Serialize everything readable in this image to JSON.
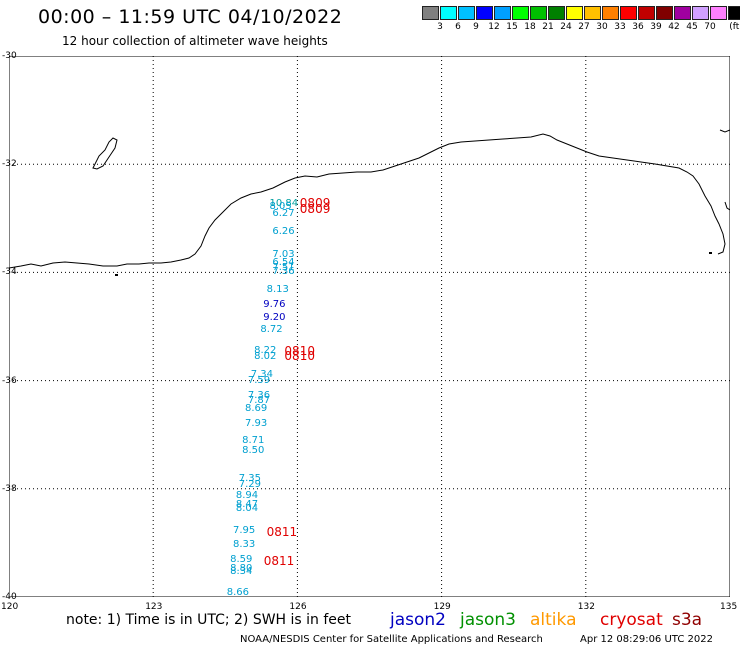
{
  "header": {
    "title": "00:00 – 11:59 UTC 04/10/2022",
    "subtitle": "12 hour collection of altimeter wave heights"
  },
  "colorbar": {
    "colors": [
      "#808080",
      "#00ffff",
      "#00c0ff",
      "#0000ff",
      "#00a0ff",
      "#00ff00",
      "#00c000",
      "#008000",
      "#ffff00",
      "#ffc000",
      "#ff8000",
      "#ff0000",
      "#c00000",
      "#800000",
      "#a000a0",
      "#d0a0ff",
      "#ff80ff",
      "#000000"
    ],
    "labels": [
      "3",
      "6",
      "9",
      "12",
      "15",
      "18",
      "21",
      "24",
      "27",
      "30",
      "33",
      "36",
      "39",
      "42",
      "45",
      "70"
    ],
    "unit": "(ft)"
  },
  "map": {
    "lat_labels": [
      "-30",
      "-32",
      "-34",
      "-36",
      "-38",
      "-40"
    ],
    "lon_labels": [
      "120",
      "123",
      "126",
      "129",
      "132",
      "135"
    ],
    "observations": [
      {
        "lon": 125.42,
        "lat": -32.73,
        "value": "10.84",
        "color": "#00a0a0"
      },
      {
        "lon": 125.42,
        "lat": -32.8,
        "value": "8.05",
        "color": "#00a0d0"
      },
      {
        "lon": 125.48,
        "lat": -32.92,
        "value": "6.27",
        "color": "#00a0d0"
      },
      {
        "lon": 125.48,
        "lat": -33.25,
        "value": "6.26",
        "color": "#00a0d0"
      },
      {
        "lon": 125.48,
        "lat": -33.68,
        "value": "7.03",
        "color": "#00a0d0"
      },
      {
        "lon": 125.48,
        "lat": -33.83,
        "value": "6.54",
        "color": "#00a0d0"
      },
      {
        "lon": 125.48,
        "lat": -33.92,
        "value": "7.51",
        "color": "#00a0d0"
      },
      {
        "lon": 125.48,
        "lat": -33.99,
        "value": "7.36",
        "color": "#00a0d0"
      },
      {
        "lon": 125.36,
        "lat": -34.32,
        "value": "8.13",
        "color": "#00a0d0"
      },
      {
        "lon": 125.29,
        "lat": -34.6,
        "value": "9.76",
        "color": "#0000c0"
      },
      {
        "lon": 125.29,
        "lat": -34.85,
        "value": "9.20",
        "color": "#0000c0"
      },
      {
        "lon": 125.23,
        "lat": -35.07,
        "value": "8.72",
        "color": "#00a0d0"
      },
      {
        "lon": 125.1,
        "lat": -35.45,
        "value": "8.22",
        "color": "#00a0d0"
      },
      {
        "lon": 125.1,
        "lat": -35.56,
        "value": "8.02",
        "color": "#00a0d0"
      },
      {
        "lon": 125.03,
        "lat": -35.9,
        "value": "7.34",
        "color": "#00a0d0"
      },
      {
        "lon": 124.97,
        "lat": -36.0,
        "value": "7.59",
        "color": "#00a0d0"
      },
      {
        "lon": 124.97,
        "lat": -36.28,
        "value": "7.36",
        "color": "#00a0d0"
      },
      {
        "lon": 124.97,
        "lat": -36.38,
        "value": "7.87",
        "color": "#00a0d0"
      },
      {
        "lon": 124.91,
        "lat": -36.52,
        "value": "8.69",
        "color": "#00a0d0"
      },
      {
        "lon": 124.91,
        "lat": -36.8,
        "value": "7.93",
        "color": "#00a0d0"
      },
      {
        "lon": 124.85,
        "lat": -37.12,
        "value": "8.71",
        "color": "#00a0d0"
      },
      {
        "lon": 124.85,
        "lat": -37.3,
        "value": "8.50",
        "color": "#00a0d0"
      },
      {
        "lon": 124.78,
        "lat": -37.82,
        "value": "7.35",
        "color": "#00a0d0"
      },
      {
        "lon": 124.78,
        "lat": -37.93,
        "value": "7.29",
        "color": "#00a0d0"
      },
      {
        "lon": 124.72,
        "lat": -38.14,
        "value": "8.94",
        "color": "#00a0d0"
      },
      {
        "lon": 124.72,
        "lat": -38.3,
        "value": "8.47",
        "color": "#00a0d0"
      },
      {
        "lon": 124.72,
        "lat": -38.38,
        "value": "8.04",
        "color": "#00a0d0"
      },
      {
        "lon": 124.66,
        "lat": -38.78,
        "value": "7.95",
        "color": "#00a0d0"
      },
      {
        "lon": 124.66,
        "lat": -39.03,
        "value": "8.33",
        "color": "#00a0d0"
      },
      {
        "lon": 124.6,
        "lat": -39.32,
        "value": "8.59",
        "color": "#00a0d0"
      },
      {
        "lon": 124.6,
        "lat": -39.48,
        "value": "8.80",
        "color": "#00a0d0"
      },
      {
        "lon": 124.6,
        "lat": -39.54,
        "value": "8.34",
        "color": "#00a0d0"
      },
      {
        "lon": 124.53,
        "lat": -39.92,
        "value": "8.66",
        "color": "#00a0d0"
      }
    ],
    "passes": [
      {
        "lon": 126.05,
        "lat": -32.72,
        "value": "0809",
        "color": "#e00000"
      },
      {
        "lon": 126.05,
        "lat": -32.82,
        "value": "0809",
        "color": "#e00000"
      },
      {
        "lon": 125.73,
        "lat": -35.45,
        "value": "0810",
        "color": "#e00000"
      },
      {
        "lon": 125.73,
        "lat": -35.55,
        "value": "0810",
        "color": "#e00000"
      },
      {
        "lon": 125.36,
        "lat": -38.8,
        "value": "0811",
        "color": "#e00000"
      },
      {
        "lon": 125.3,
        "lat": -39.34,
        "value": "0811",
        "color": "#e00000"
      }
    ]
  },
  "note": "note:  1) Time is in UTC;  2) SWH is in feet",
  "legend": [
    {
      "name": "jason2",
      "color": "#0000c0"
    },
    {
      "name": "jason3",
      "color": "#009000"
    },
    {
      "name": "altika",
      "color": "#ff9900"
    },
    {
      "name": "cryosat",
      "color": "#e00000"
    },
    {
      "name": "s3a",
      "color": "#900000"
    }
  ],
  "footer": {
    "credit": "NOAA/NESDIS Center for Satellite Applications and Research",
    "timestamp": "Apr 12 08:29:06 UTC 2022"
  }
}
